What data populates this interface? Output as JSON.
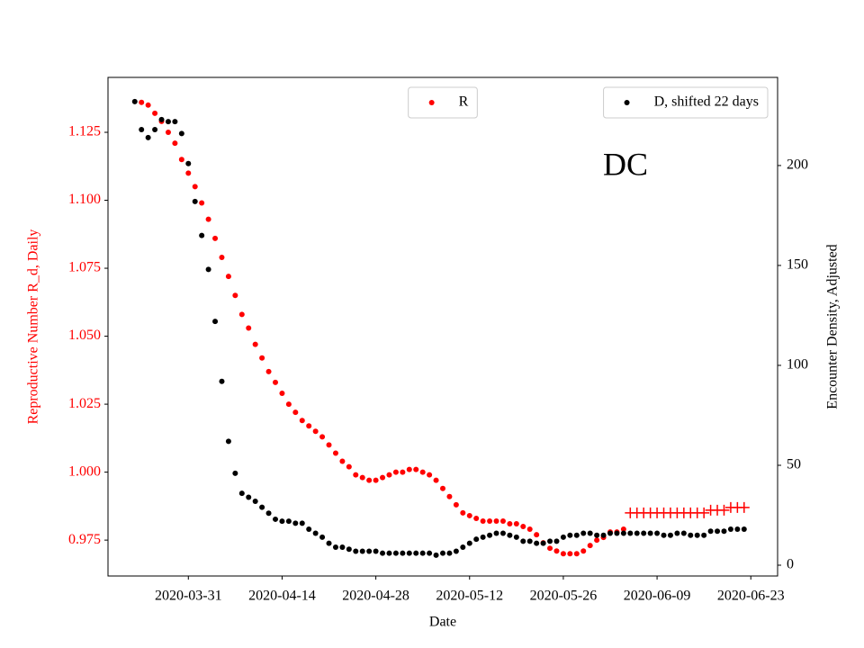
{
  "chart_data": {
    "type": "scatter",
    "annotation": "DC",
    "xlabel": "Date",
    "ylabel": "Reproductive Number R_d, Daily",
    "y2label": "Encounter Density, Adjusted",
    "x": [
      "2020-03-23",
      "2020-03-24",
      "2020-03-25",
      "2020-03-26",
      "2020-03-27",
      "2020-03-28",
      "2020-03-29",
      "2020-03-30",
      "2020-03-31",
      "2020-04-01",
      "2020-04-02",
      "2020-04-03",
      "2020-04-04",
      "2020-04-05",
      "2020-04-06",
      "2020-04-07",
      "2020-04-08",
      "2020-04-09",
      "2020-04-10",
      "2020-04-11",
      "2020-04-12",
      "2020-04-13",
      "2020-04-14",
      "2020-04-15",
      "2020-04-16",
      "2020-04-17",
      "2020-04-18",
      "2020-04-19",
      "2020-04-20",
      "2020-04-21",
      "2020-04-22",
      "2020-04-23",
      "2020-04-24",
      "2020-04-25",
      "2020-04-26",
      "2020-04-27",
      "2020-04-28",
      "2020-04-29",
      "2020-04-30",
      "2020-05-01",
      "2020-05-02",
      "2020-05-03",
      "2020-05-04",
      "2020-05-05",
      "2020-05-06",
      "2020-05-07",
      "2020-05-08",
      "2020-05-09",
      "2020-05-10",
      "2020-05-11",
      "2020-05-12",
      "2020-05-13",
      "2020-05-14",
      "2020-05-15",
      "2020-05-16",
      "2020-05-17",
      "2020-05-18",
      "2020-05-19",
      "2020-05-20",
      "2020-05-21",
      "2020-05-22",
      "2020-05-23",
      "2020-05-24",
      "2020-05-25",
      "2020-05-26",
      "2020-05-27",
      "2020-05-28",
      "2020-05-29",
      "2020-05-30",
      "2020-05-31",
      "2020-06-01",
      "2020-06-02",
      "2020-06-03",
      "2020-06-04",
      "2020-06-05",
      "2020-06-06",
      "2020-06-07",
      "2020-06-08",
      "2020-06-09",
      "2020-06-10",
      "2020-06-11",
      "2020-06-12",
      "2020-06-13",
      "2020-06-14",
      "2020-06-15",
      "2020-06-16",
      "2020-06-17",
      "2020-06-18",
      "2020-06-19",
      "2020-06-20",
      "2020-06-21",
      "2020-06-22"
    ],
    "xlim": [
      "2020-03-19",
      "2020-06-27"
    ],
    "xticks": [
      "2020-03-31",
      "2020-04-14",
      "2020-04-28",
      "2020-05-12",
      "2020-05-26",
      "2020-06-09",
      "2020-06-23"
    ],
    "ylim": [
      0.9618,
      1.1452
    ],
    "yticks": [
      0.975,
      {
        "value": 1,
        "label": "1.000"
      },
      1.025,
      {
        "value": 1.05,
        "label": "1.050"
      },
      1.075,
      {
        "value": 1.1,
        "label": "1.100"
      },
      1.125
    ],
    "y_color": "#ff0000",
    "y2lim": [
      -5.4,
      244.1
    ],
    "y2ticks": [
      0,
      50,
      100,
      150,
      200
    ],
    "series": [
      {
        "name": "R",
        "color": "#ff0000",
        "marker": "circle",
        "legend_loc": "upper center",
        "values": [
          null,
          1.136,
          1.135,
          1.132,
          1.129,
          1.125,
          1.121,
          1.115,
          1.11,
          1.105,
          1.099,
          1.093,
          1.086,
          1.079,
          1.072,
          1.065,
          1.058,
          1.053,
          1.047,
          1.042,
          1.037,
          1.033,
          1.029,
          1.025,
          1.022,
          1.019,
          1.017,
          1.015,
          1.013,
          1.01,
          1.007,
          1.004,
          1.002,
          0.999,
          0.998,
          0.997,
          0.997,
          0.998,
          0.999,
          1.0,
          1.0,
          1.001,
          1.001,
          1.0,
          0.999,
          0.997,
          0.994,
          0.991,
          0.988,
          0.985,
          0.984,
          0.983,
          0.982,
          0.982,
          0.982,
          0.982,
          0.981,
          0.981,
          0.98,
          0.979,
          0.977,
          0.974,
          0.972,
          0.971,
          0.97,
          0.97,
          0.97,
          0.971,
          0.973,
          0.975,
          0.976,
          0.978,
          0.978,
          0.979,
          null,
          null,
          null,
          null,
          null,
          null,
          null,
          null,
          null,
          null,
          null,
          null,
          null,
          null,
          null,
          null,
          null,
          null
        ]
      },
      {
        "color": "#ff0000",
        "marker": "plus",
        "values": [
          null,
          null,
          null,
          null,
          null,
          null,
          null,
          null,
          null,
          null,
          null,
          null,
          null,
          null,
          null,
          null,
          null,
          null,
          null,
          null,
          null,
          null,
          null,
          null,
          null,
          null,
          null,
          null,
          null,
          null,
          null,
          null,
          null,
          null,
          null,
          null,
          null,
          null,
          null,
          null,
          null,
          null,
          null,
          null,
          null,
          null,
          null,
          null,
          null,
          null,
          null,
          null,
          null,
          null,
          null,
          null,
          null,
          null,
          null,
          null,
          null,
          null,
          null,
          null,
          null,
          null,
          null,
          null,
          null,
          null,
          null,
          null,
          null,
          null,
          0.985,
          0.985,
          0.985,
          0.985,
          0.985,
          0.985,
          0.985,
          0.985,
          0.985,
          0.985,
          0.985,
          0.985,
          0.986,
          0.986,
          0.986,
          0.987,
          0.987,
          0.987
        ]
      },
      {
        "name": "D, shifted 22 days",
        "color": "#000000",
        "marker": "circle",
        "axis": "y2",
        "legend_loc": "upper right",
        "values": [
          232,
          218,
          214,
          218,
          223,
          222,
          222,
          216,
          201,
          182,
          165,
          148,
          122,
          92,
          62,
          46,
          36,
          34,
          32,
          29,
          26,
          23,
          22,
          22,
          21,
          21,
          18,
          16,
          14,
          11,
          9,
          9,
          8,
          7,
          7,
          7,
          7,
          6,
          6,
          6,
          6,
          6,
          6,
          6,
          6,
          5,
          6,
          6,
          7,
          9,
          11,
          13,
          14,
          15,
          16,
          16,
          15,
          14,
          12,
          12,
          11,
          11,
          12,
          12,
          14,
          15,
          15,
          16,
          16,
          15,
          15,
          16,
          16,
          16,
          16,
          16,
          16,
          16,
          16,
          15,
          15,
          16,
          16,
          15,
          15,
          15,
          17,
          17,
          17,
          18,
          18,
          18
        ]
      }
    ]
  }
}
